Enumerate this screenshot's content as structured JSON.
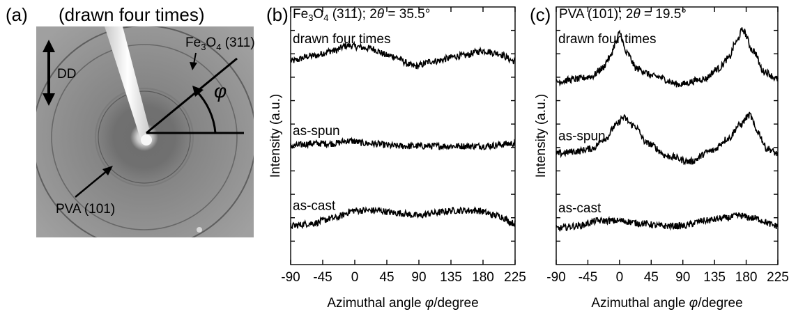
{
  "panel_a": {
    "label": "(a)",
    "title": "(drawn four times)",
    "dd_label": "DD",
    "fe_label_main": "Fe",
    "fe_sub1": "3",
    "fe_mid": "O",
    "fe_sub2": "4",
    "fe_tail": " (311)",
    "pva_label": "PVA (101)",
    "phi_label": "φ",
    "colors": {
      "background": "#8e8e8e",
      "beam": "#f4f4f4"
    }
  },
  "chart_data": [
    {
      "type": "line",
      "panel_label": "(b)",
      "title_main": "Fe",
      "title_sub1": "3",
      "title_mid": "O",
      "title_sub2": "4",
      "title_tail": " (311); 2",
      "title_theta": "θ",
      "title_value": " = 35.5°",
      "xlabel_main": "Azimuthal angle ",
      "xlabel_phi": "φ",
      "xlabel_tail": "/degree",
      "ylabel": "Intensity (a.u.)",
      "xlim": [
        -90,
        225
      ],
      "ylim": [
        0,
        100
      ],
      "xticks": [
        "-90",
        "-45",
        "0",
        "45",
        "90",
        "135",
        "180",
        "225"
      ],
      "yticks_count": 10,
      "series": [
        {
          "name": "drawn four times",
          "x": [
            -90,
            -60,
            -30,
            -10,
            20,
            50,
            85,
            110,
            150,
            180,
            200,
            225
          ],
          "values": [
            79,
            81,
            83,
            85,
            84,
            81,
            77,
            79,
            81,
            83,
            82,
            79
          ]
        },
        {
          "name": "as-spun",
          "x": [
            -90,
            -60,
            -30,
            -10,
            20,
            60,
            100,
            140,
            180,
            225
          ],
          "values": [
            46,
            47,
            47,
            48,
            47,
            46,
            46,
            46,
            46,
            47
          ]
        },
        {
          "name": "as-cast",
          "x": [
            -90,
            -60,
            -30,
            0,
            30,
            60,
            90,
            110,
            140,
            170,
            200,
            225
          ],
          "values": [
            15,
            16,
            18,
            21,
            21,
            20,
            19,
            20,
            21,
            21,
            19,
            16
          ]
        }
      ]
    },
    {
      "type": "line",
      "panel_label": "(c)",
      "title_main": "PVA (101); 2",
      "title_theta": "θ",
      "title_value": " = 19.5°",
      "xlabel_main": "Azimuthal angle ",
      "xlabel_phi": "φ",
      "xlabel_tail": "/degree",
      "ylabel": "Intensity (a.u.)",
      "xlim": [
        -90,
        225
      ],
      "ylim": [
        0,
        100
      ],
      "xticks": [
        "-90",
        "-45",
        "0",
        "45",
        "90",
        "135",
        "180",
        "225"
      ],
      "yticks_count": 10,
      "series": [
        {
          "name": "drawn four times",
          "x": [
            -90,
            -60,
            -40,
            -25,
            -15,
            -5,
            0,
            10,
            25,
            50,
            85,
            120,
            140,
            155,
            165,
            175,
            190,
            205,
            225
          ],
          "values": [
            71,
            72,
            73,
            76,
            80,
            86,
            90,
            82,
            76,
            73,
            70,
            72,
            76,
            80,
            86,
            91,
            83,
            75,
            72
          ]
        },
        {
          "name": "as-spun",
          "x": [
            -90,
            -60,
            -40,
            -20,
            -5,
            5,
            20,
            40,
            70,
            100,
            130,
            155,
            170,
            185,
            195,
            210,
            225
          ],
          "values": [
            43,
            44,
            45,
            49,
            54,
            57,
            54,
            47,
            42,
            40,
            44,
            49,
            54,
            58,
            52,
            45,
            43
          ]
        },
        {
          "name": "as-cast",
          "x": [
            -90,
            -60,
            -30,
            0,
            30,
            60,
            90,
            120,
            150,
            170,
            190,
            225
          ],
          "values": [
            14,
            15,
            17,
            17,
            16,
            15,
            15,
            17,
            18,
            19,
            18,
            15
          ]
        }
      ]
    }
  ]
}
